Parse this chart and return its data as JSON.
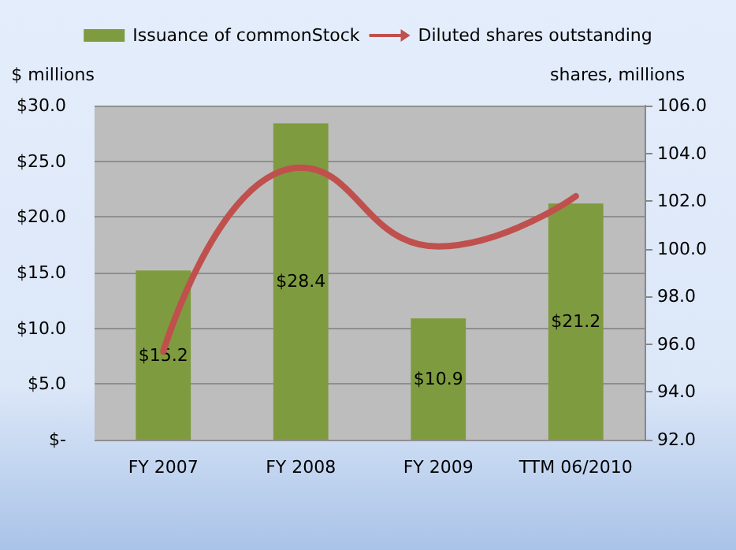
{
  "chart_data": {
    "type": "bar",
    "categories": [
      "FY 2007",
      "FY 2008",
      "FY 2009",
      "TTM 06/2010"
    ],
    "series": [
      {
        "name": "Issuance of commonStock",
        "color": "#7f9b3f",
        "values": [
          15.2,
          28.4,
          10.9,
          21.2
        ],
        "value_labels": [
          "$15.2",
          "$28.4",
          "$10.9",
          "$21.2"
        ]
      },
      {
        "name": "Diluted shares outstanding",
        "type": "line",
        "axis": "y2",
        "color": "#c0504d",
        "values": [
          95.7,
          103.4,
          100.1,
          102.2
        ]
      }
    ],
    "ylabel": "$ millions",
    "y2label": "shares, millions",
    "ylim": [
      0,
      30
    ],
    "yticks": [
      {
        "value": 0,
        "label": "$-"
      },
      {
        "value": 5,
        "label": "$5.0"
      },
      {
        "value": 10,
        "label": "$10.0"
      },
      {
        "value": 15,
        "label": "$15.0"
      },
      {
        "value": 20,
        "label": "$20.0"
      },
      {
        "value": 25,
        "label": "$25.0"
      },
      {
        "value": 30,
        "label": "$30.0"
      }
    ],
    "y2lim": [
      92,
      106
    ],
    "y2ticks": [
      {
        "value": 92,
        "label": "92.0"
      },
      {
        "value": 94,
        "label": "94.0"
      },
      {
        "value": 96,
        "label": "96.0"
      },
      {
        "value": 98,
        "label": "98.0"
      },
      {
        "value": 100,
        "label": "100.0"
      },
      {
        "value": 102,
        "label": "102.0"
      },
      {
        "value": 104,
        "label": "104.0"
      },
      {
        "value": 106,
        "label": "106.0"
      }
    ],
    "grid": "y",
    "legend": "top",
    "marker": "none",
    "line_style": "solid"
  }
}
